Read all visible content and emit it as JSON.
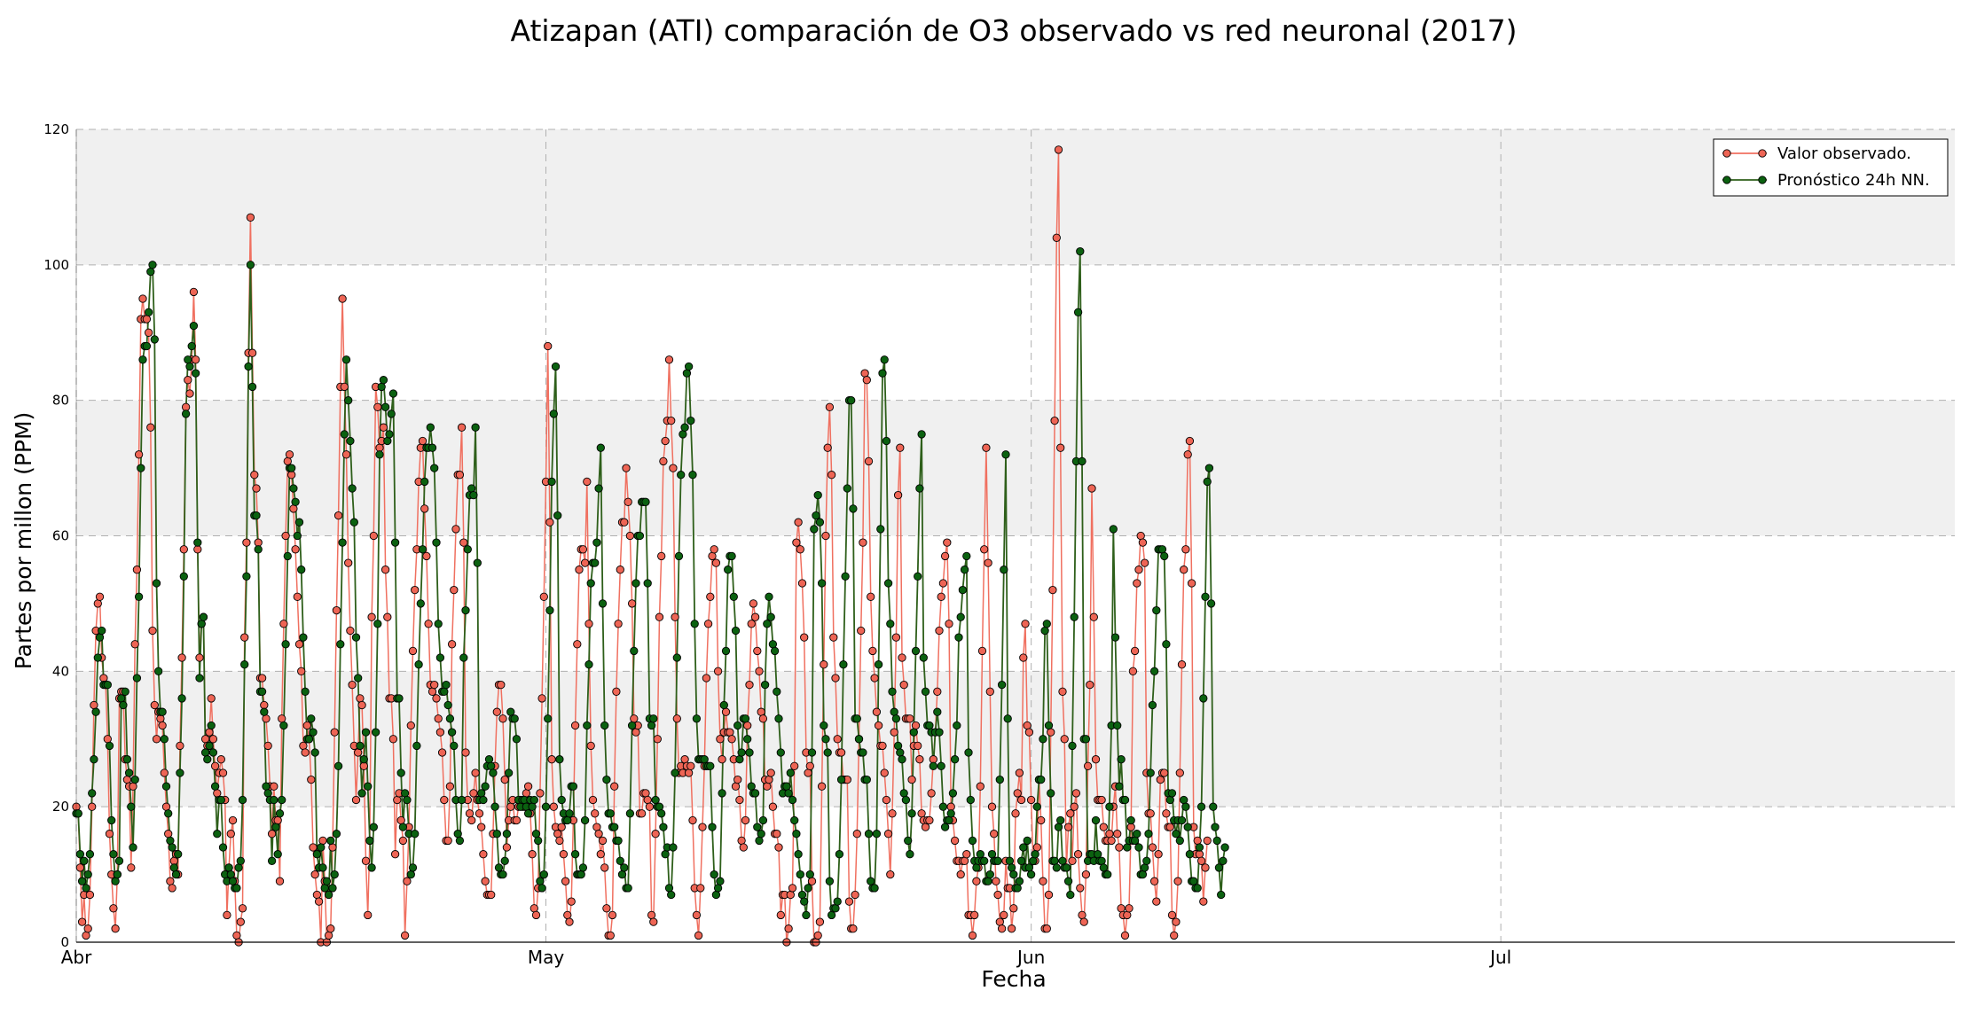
{
  "chart_data": {
    "type": "line",
    "title": "Atizapan (ATI) comparación de O3 observado vs red neuronal (2017)",
    "xlabel": "Fecha",
    "ylabel": "Partes por millon (PPM)",
    "ylim": [
      0,
      120
    ],
    "xlim": [
      "2017-04-01",
      "2017-07-30"
    ],
    "yticks": [
      0,
      20,
      40,
      60,
      80,
      100,
      120
    ],
    "xticks": [
      {
        "date": "2017-04-01",
        "label": "Abr"
      },
      {
        "date": "2017-05-01",
        "label": "May"
      },
      {
        "date": "2017-06-01",
        "label": "Jun"
      },
      {
        "date": "2017-07-01",
        "label": "Jul"
      }
    ],
    "grid": true,
    "band_fill": "#f0f0f0",
    "legend_position": "top-right",
    "x_start": "2017-04-01T00:00",
    "x_step_hours": 3,
    "series": [
      {
        "name": "Valor observado.",
        "color": "#f07060",
        "marker_color": "#ee6555",
        "values": [
          20,
          19,
          11,
          3,
          7,
          1,
          2,
          7,
          20,
          35,
          46,
          50,
          51,
          42,
          39,
          38,
          30,
          16,
          10,
          5,
          2,
          10,
          36,
          37,
          37,
          27,
          24,
          23,
          11,
          23,
          44,
          55,
          72,
          92,
          95,
          92,
          92,
          90,
          76,
          46,
          35,
          30,
          34,
          33,
          32,
          25,
          20,
          16,
          9,
          8,
          12,
          13,
          10,
          29,
          42,
          58,
          79,
          83,
          81,
          86,
          96,
          86,
          58,
          42,
          47,
          48,
          30,
          29,
          31,
          36,
          30,
          26,
          22,
          25,
          27,
          25,
          21,
          4,
          11,
          16,
          18,
          9,
          1,
          0,
          3,
          5,
          45,
          59,
          87,
          107,
          87,
          69,
          67,
          59,
          39,
          39,
          35,
          33,
          29,
          23,
          16,
          23,
          18,
          18,
          9,
          33,
          47,
          60,
          71,
          72,
          69,
          64,
          58,
          51,
          44,
          40,
          29,
          28,
          32,
          30,
          24,
          14,
          10,
          7,
          6,
          0,
          15,
          9,
          0,
          1,
          2,
          14,
          31,
          49,
          63,
          82,
          95,
          82,
          72,
          56,
          46,
          38,
          29,
          21,
          28,
          36,
          35,
          26,
          12,
          4,
          15,
          48,
          60,
          82,
          79,
          73,
          74,
          76,
          55,
          48,
          36,
          36,
          30,
          13,
          21,
          22,
          18,
          15,
          1,
          9,
          17,
          32,
          43,
          52,
          58,
          68,
          73,
          74,
          64,
          57,
          47,
          38,
          37,
          38,
          36,
          33,
          31,
          28,
          21,
          15,
          15,
          23,
          44,
          52,
          61,
          69,
          69,
          76,
          59,
          28,
          21,
          19,
          18,
          22,
          25,
          21,
          19,
          17,
          13,
          9,
          7,
          7,
          7,
          16,
          26,
          34,
          38,
          38,
          33,
          24,
          14,
          18,
          20,
          21,
          18,
          18,
          20,
          21,
          20,
          20,
          22,
          23,
          19,
          13,
          5,
          4,
          8,
          22,
          36,
          51,
          68,
          88,
          62,
          27,
          20,
          17,
          16,
          15,
          17,
          13,
          9,
          4,
          3,
          6,
          18,
          32,
          44,
          55,
          58,
          58,
          56,
          68,
          47,
          29,
          21,
          19,
          17,
          16,
          13,
          15,
          11,
          5,
          1,
          1,
          4,
          23,
          37,
          47,
          55,
          62,
          62,
          70,
          65,
          60,
          50,
          33,
          31,
          32,
          19,
          19,
          22,
          22,
          21,
          20,
          4,
          3,
          16,
          30,
          48,
          57,
          71,
          74,
          77,
          86,
          77,
          70,
          48,
          33,
          25,
          26,
          25,
          27,
          26,
          25,
          26,
          18,
          8,
          4,
          1,
          8,
          17,
          26,
          39,
          47,
          51,
          57,
          58,
          56,
          40,
          30,
          27,
          31,
          34,
          31,
          31,
          30,
          27,
          23,
          24,
          21,
          15,
          14,
          18,
          32,
          38,
          47,
          50,
          48,
          43,
          40,
          34,
          33,
          24,
          23,
          24,
          25,
          20,
          16,
          16,
          14,
          4,
          7,
          7,
          0,
          2,
          7,
          8,
          26,
          59,
          62,
          58,
          53,
          45,
          28,
          25,
          26,
          9,
          0,
          0,
          1,
          3,
          23,
          41,
          60,
          73,
          79,
          69,
          45,
          39,
          30,
          28,
          28,
          24,
          24,
          24,
          6,
          2,
          2,
          7,
          16,
          30,
          46,
          59,
          84,
          83,
          71,
          51,
          43,
          39,
          34,
          32,
          29,
          29,
          25,
          21,
          16,
          10,
          19,
          31,
          45,
          66,
          73,
          42,
          38,
          33,
          33,
          33,
          24,
          29,
          32,
          29,
          27,
          19,
          18,
          17,
          18,
          18,
          22,
          27,
          31,
          37,
          46,
          51,
          53,
          57,
          59,
          47,
          20,
          18,
          15,
          12,
          12,
          10,
          12,
          12,
          13,
          4,
          4,
          1,
          4,
          9,
          11,
          23,
          43,
          58,
          73,
          56,
          37,
          20,
          16,
          9,
          7,
          3,
          2,
          4,
          12,
          8,
          8,
          2,
          5,
          19,
          22,
          25,
          21,
          42,
          47,
          32,
          31,
          21,
          12,
          12,
          14,
          24,
          18,
          9,
          2,
          2,
          7,
          31,
          52,
          77,
          104,
          117,
          73,
          37,
          30,
          11,
          17,
          19,
          12,
          20,
          22,
          13,
          8,
          4,
          3,
          10,
          26,
          38,
          67,
          48,
          27,
          21,
          21,
          21,
          17,
          15,
          15,
          16,
          15,
          20,
          23,
          16,
          14,
          5,
          4,
          1,
          4,
          5,
          17,
          40,
          43,
          53,
          55,
          60,
          59,
          56,
          25,
          19,
          19,
          14,
          9,
          6,
          13,
          24,
          25,
          25,
          19,
          17,
          17,
          4,
          1,
          3,
          9,
          25,
          41,
          55,
          58,
          72,
          74,
          53,
          17,
          13,
          15,
          13,
          12,
          6,
          11,
          15
        ]
      },
      {
        "name": "Pronóstico 24h NN.",
        "color": "#2e5f1a",
        "marker_color": "#0b6110",
        "values": [
          19,
          19,
          13,
          9,
          12,
          8,
          10,
          13,
          22,
          27,
          34,
          42,
          45,
          46,
          38,
          38,
          38,
          29,
          18,
          13,
          9,
          10,
          12,
          36,
          35,
          37,
          27,
          25,
          20,
          14,
          24,
          39,
          51,
          70,
          86,
          88,
          88,
          93,
          99,
          100,
          89,
          53,
          40,
          34,
          34,
          30,
          23,
          19,
          15,
          14,
          11,
          10,
          13,
          25,
          36,
          54,
          78,
          86,
          85,
          88,
          91,
          84,
          59,
          39,
          47,
          48,
          28,
          27,
          29,
          32,
          28,
          23,
          16,
          21,
          21,
          14,
          10,
          9,
          11,
          10,
          9,
          8,
          8,
          11,
          12,
          21,
          41,
          54,
          85,
          100,
          82,
          63,
          63,
          58,
          37,
          37,
          34,
          23,
          22,
          21,
          12,
          21,
          17,
          13,
          19,
          21,
          32,
          44,
          57,
          70,
          70,
          67,
          65,
          60,
          62,
          55,
          45,
          37,
          30,
          30,
          33,
          31,
          28,
          13,
          11,
          14,
          11,
          8,
          9,
          7,
          15,
          8,
          10,
          16,
          26,
          44,
          59,
          75,
          86,
          80,
          74,
          67,
          62,
          45,
          39,
          29,
          22,
          27,
          31,
          23,
          15,
          11,
          17,
          31,
          47,
          72,
          82,
          83,
          79,
          74,
          75,
          78,
          81,
          59,
          36,
          36,
          25,
          17,
          22,
          21,
          16,
          10,
          11,
          16,
          29,
          41,
          50,
          58,
          68,
          73,
          73,
          76,
          73,
          70,
          59,
          47,
          42,
          37,
          37,
          38,
          35,
          33,
          31,
          29,
          21,
          16,
          15,
          21,
          42,
          49,
          58,
          66,
          67,
          66,
          76,
          56,
          21,
          22,
          21,
          23,
          26,
          27,
          26,
          25,
          20,
          16,
          11,
          10,
          10,
          12,
          16,
          25,
          34,
          33,
          33,
          30,
          21,
          20,
          21,
          21,
          20,
          19,
          21,
          20,
          21,
          16,
          15,
          9,
          8,
          10,
          20,
          33,
          49,
          68,
          78,
          85,
          63,
          27,
          21,
          19,
          18,
          18,
          19,
          23,
          23,
          13,
          10,
          10,
          10,
          11,
          18,
          32,
          41,
          53,
          56,
          56,
          59,
          67,
          73,
          50,
          32,
          24,
          19,
          19,
          17,
          17,
          15,
          15,
          12,
          10,
          11,
          8,
          8,
          19,
          32,
          43,
          53,
          60,
          60,
          65,
          65,
          65,
          53,
          33,
          32,
          33,
          21,
          20,
          20,
          19,
          17,
          13,
          14,
          8,
          7,
          14,
          25,
          42,
          57,
          69,
          75,
          76,
          84,
          85,
          77,
          69,
          47,
          33,
          27,
          27,
          27,
          27,
          26,
          26,
          26,
          17,
          10,
          7,
          8,
          9,
          22,
          35,
          43,
          55,
          57,
          57,
          51,
          46,
          32,
          27,
          28,
          33,
          33,
          30,
          28,
          23,
          22,
          22,
          17,
          15,
          16,
          18,
          38,
          47,
          51,
          48,
          44,
          43,
          37,
          33,
          28,
          22,
          23,
          23,
          22,
          25,
          21,
          18,
          16,
          13,
          10,
          7,
          6,
          4,
          8,
          10,
          28,
          61,
          63,
          66,
          62,
          53,
          32,
          30,
          28,
          9,
          4,
          5,
          5,
          6,
          13,
          24,
          41,
          54,
          67,
          80,
          80,
          64,
          33,
          33,
          30,
          28,
          28,
          24,
          24,
          16,
          9,
          8,
          8,
          16,
          41,
          61,
          84,
          86,
          74,
          53,
          47,
          37,
          34,
          33,
          29,
          28,
          27,
          22,
          21,
          15,
          13,
          19,
          31,
          43,
          54,
          67,
          75,
          42,
          37,
          32,
          32,
          31,
          26,
          31,
          34,
          31,
          26,
          20,
          17,
          18,
          18,
          19,
          22,
          27,
          32,
          45,
          48,
          52,
          55,
          57,
          28,
          21,
          15,
          12,
          11,
          12,
          13,
          12,
          12,
          9,
          9,
          10,
          13,
          12,
          12,
          12,
          24,
          38,
          55,
          72,
          33,
          12,
          11,
          10,
          8,
          8,
          9,
          12,
          14,
          11,
          15,
          11,
          10,
          12,
          13,
          20,
          24,
          24,
          30,
          46,
          47,
          32,
          22,
          12,
          12,
          11,
          17,
          18,
          12,
          11,
          11,
          9,
          7,
          29,
          48,
          71,
          93,
          102,
          71,
          30,
          30,
          12,
          13,
          13,
          12,
          18,
          13,
          12,
          12,
          11,
          10,
          10,
          20,
          32,
          61,
          45,
          32,
          23,
          27,
          21,
          21,
          14,
          15,
          18,
          15,
          15,
          16,
          14,
          10,
          10,
          11,
          12,
          16,
          25,
          35,
          40,
          49,
          58,
          58,
          58,
          57,
          44,
          22,
          21,
          22,
          18,
          16,
          18,
          15,
          18,
          21,
          20,
          17,
          13,
          9,
          9,
          8,
          8,
          14,
          20,
          36,
          51,
          68,
          70,
          50,
          20,
          17,
          15,
          11,
          7,
          12,
          14
        ]
      }
    ]
  }
}
